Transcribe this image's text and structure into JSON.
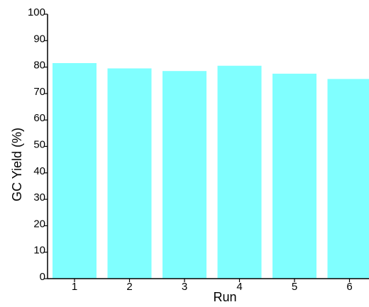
{
  "chart_data": {
    "type": "bar",
    "categories": [
      "1",
      "2",
      "3",
      "4",
      "5",
      "6"
    ],
    "values": [
      81.5,
      79.5,
      78.5,
      80.5,
      77.5,
      75.5
    ],
    "title": "",
    "xlabel": "Run",
    "ylabel": "GC Yield (%)",
    "ylim": [
      0,
      100
    ],
    "yticks": [
      0,
      10,
      20,
      30,
      40,
      50,
      60,
      70,
      80,
      90,
      100
    ],
    "grid": false,
    "bar_color": "#80FFFF"
  }
}
